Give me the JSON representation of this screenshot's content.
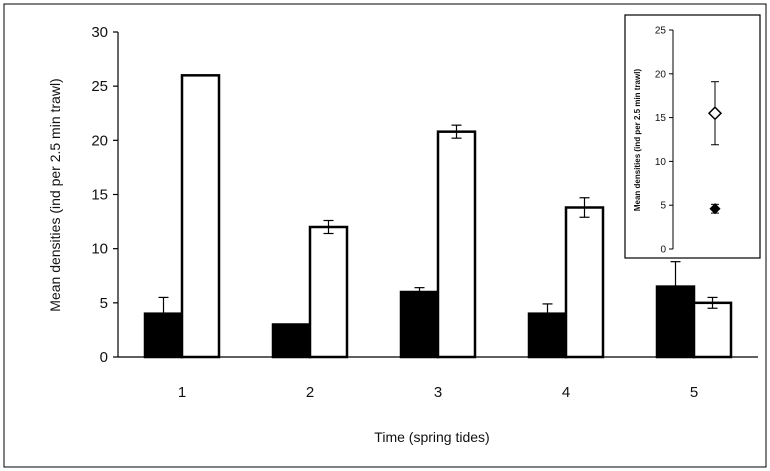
{
  "chart_data": [
    {
      "type": "bar",
      "title": "",
      "xlabel": "Time (spring  tides)",
      "ylabel": "Mean densities (ind per 2.5 min trawl)",
      "categories": [
        "1",
        "2",
        "3",
        "4",
        "5"
      ],
      "ylim": [
        0,
        30
      ],
      "yticks": [
        "0",
        "5",
        "10",
        "15",
        "20",
        "25",
        "30"
      ],
      "grid": false,
      "series": [
        {
          "color": "#000000",
          "values": [
            4,
            3,
            6,
            4,
            6.5
          ],
          "errors": [
            1.5,
            0,
            0.4,
            0.9,
            2.3
          ]
        },
        {
          "color": "#ffffff",
          "values": [
            26,
            12,
            20.8,
            13.8,
            5
          ],
          "errors": [
            0,
            0.6,
            0.6,
            0.9,
            0.5
          ]
        }
      ]
    },
    {
      "type": "scatter",
      "title": "",
      "xlabel": "",
      "ylabel": "Mean densities (ind per 2.5 min trawl)",
      "ylim": [
        0,
        25
      ],
      "yticks": [
        "0",
        "5",
        "10",
        "15",
        "20",
        "25"
      ],
      "grid": false,
      "series": [
        {
          "marker": "diamond-open",
          "values": [
            15.5
          ],
          "errors": [
            3.6
          ]
        },
        {
          "marker": "diamond-filled",
          "values": [
            4.6
          ],
          "errors": [
            0.5
          ]
        }
      ]
    }
  ]
}
